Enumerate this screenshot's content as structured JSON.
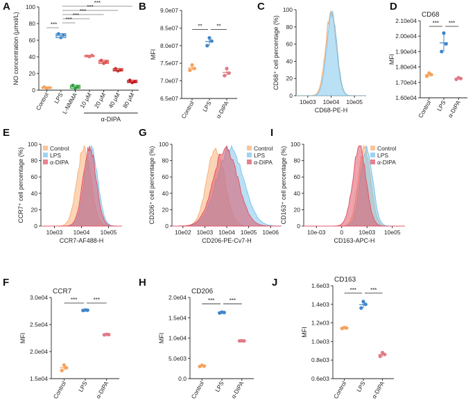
{
  "colors": {
    "control": "#f5a25d",
    "lps": "#3f86c8",
    "lnmma": "#2f9e3f",
    "dipa10": "#e57373",
    "dipa20": "#d9534f",
    "dipa40": "#c9302c",
    "dipa80": "#c0181b",
    "dipa": "#e07a86",
    "hist_control": "#f7b27a",
    "hist_lps": "#7fc6ec",
    "hist_dipa": "#e0576a"
  },
  "chart_data": [
    {
      "id": "A",
      "label": "A",
      "type": "box",
      "ylabel": "NO concentration (μmol/L)",
      "ylim": [
        0,
        100
      ],
      "yticks": [
        "0",
        "20",
        "40",
        "60",
        "80",
        "100"
      ],
      "categories": [
        "Control",
        "LPS",
        "L-NMMA",
        "10 μM",
        "20 μM",
        "40 μM",
        "80 μM"
      ],
      "group_label": "α-DIPA",
      "color_keys": [
        "control",
        "lps",
        "lnmma",
        "dipa10",
        "dipa20",
        "dipa40",
        "dipa80"
      ],
      "points": [
        [
          4,
          2,
          3
        ],
        [
          68,
          63,
          66
        ],
        [
          6,
          2,
          4
        ],
        [
          41,
          40,
          42
        ],
        [
          36,
          32,
          34
        ],
        [
          26,
          23,
          24
        ],
        [
          12,
          9,
          10
        ]
      ],
      "sig": [
        "***",
        "***",
        "***",
        "***",
        "***",
        "***"
      ]
    },
    {
      "id": "B",
      "label": "B",
      "type": "dot",
      "ylabel": "MFI",
      "title": "",
      "ylim": [
        65000000.0,
        90000000.0
      ],
      "yticks": [
        "6.5e07",
        "7.0e07",
        "7.5e07",
        "8.0e07",
        "8.5e07",
        "9.0e07"
      ],
      "categories": [
        "Control",
        "LPS",
        "α-DIPA"
      ],
      "color_keys": [
        "control",
        "lps",
        "dipa"
      ],
      "points": [
        [
          73000000.0,
          74500000.0,
          73500000.0
        ],
        [
          80000000.0,
          82200000.0,
          81300000.0
        ],
        [
          71500000.0,
          73500000.0,
          72200000.0
        ]
      ],
      "sig": [
        "**",
        "**"
      ]
    },
    {
      "id": "C",
      "label": "C",
      "type": "histogram",
      "ylabel": "CD68⁺ cell percentage (%)",
      "xlabel": "CD68-PE-H",
      "xticks": [
        "10e03",
        "10e04",
        "10e05"
      ],
      "yticks": [
        "0",
        "20",
        "40",
        "60",
        "80",
        "100"
      ],
      "legend": [],
      "series": [
        {
          "name": "Control",
          "color_key": "hist_control",
          "mu": 0.5,
          "sigma": 0.075,
          "side": "line"
        },
        {
          "name": "LPS",
          "color_key": "hist_lps",
          "mu": 0.51,
          "sigma": 0.073,
          "side": "fill"
        }
      ]
    },
    {
      "id": "D",
      "label": "D",
      "type": "dot",
      "ylabel": "MFI",
      "title": "CD68",
      "ylim": [
        16000.0,
        21000.0
      ],
      "yticks": [
        "1.60e04",
        "1.70e04",
        "1.80e04",
        "1.90e04",
        "2.00e04",
        "2.10e04"
      ],
      "categories": [
        "Control",
        "LPS",
        "α-DIPA"
      ],
      "color_keys": [
        "control",
        "lps",
        "dipa"
      ],
      "points": [
        [
          17400.0,
          17600.0,
          17500.0
        ],
        [
          19000.0,
          20200.0,
          19500.0
        ],
        [
          17200.0,
          17300.0,
          17250.0
        ]
      ],
      "sig": [
        "***",
        "***"
      ]
    },
    {
      "id": "E",
      "label": "E",
      "type": "histogram",
      "ylabel": "CCR7⁺ cell percentage (%)",
      "xlabel": "CCR7-AF488-H",
      "xticks": [
        "10e03",
        "10e04",
        "10e05"
      ],
      "yticks": [
        "0",
        "20",
        "40",
        "60",
        "80",
        "100"
      ],
      "legend": [
        "Control",
        "LPS",
        "α-DIPA"
      ],
      "series": [
        {
          "name": "Control",
          "color_key": "hist_control",
          "mu": 0.53,
          "sigma": 0.085,
          "side": "fill"
        },
        {
          "name": "LPS",
          "color_key": "hist_lps",
          "mu": 0.62,
          "sigma": 0.08,
          "side": "fill"
        },
        {
          "name": "α-DIPA",
          "color_key": "hist_dipa",
          "mu": 0.6,
          "sigma": 0.08,
          "side": "fill"
        }
      ]
    },
    {
      "id": "G",
      "label": "G",
      "type": "histogram",
      "ylabel": "CD206⁺ cell percentage (%)",
      "xlabel": "CD206-PE-Cv7-H",
      "xticks": [
        "10e02",
        "10e03",
        "10e04",
        "10e05",
        "10e06"
      ],
      "yticks": [
        "0",
        "20",
        "40",
        "60",
        "80",
        "100"
      ],
      "legend": [
        "Control",
        "LPS",
        "α-DIPA"
      ],
      "series": [
        {
          "name": "Control",
          "color_key": "hist_control",
          "mu": 0.4,
          "sigma": 0.08,
          "side": "fill"
        },
        {
          "name": "LPS",
          "color_key": "hist_lps",
          "mu": 0.53,
          "sigma": 0.12,
          "side": "fill"
        },
        {
          "name": "α-DIPA",
          "color_key": "hist_dipa",
          "mu": 0.49,
          "sigma": 0.11,
          "side": "fill"
        }
      ]
    },
    {
      "id": "I",
      "label": "I",
      "type": "histogram",
      "ylabel": "CD163⁺ cell percentage (%)",
      "xlabel": "CD163-APC-H",
      "xticks": [
        "10e-03",
        "0",
        "10e03",
        "10e05"
      ],
      "yticks": [
        "0",
        "20",
        "40",
        "60",
        "80",
        "100"
      ],
      "legend": [
        "Control",
        "LPS",
        "α-DIPA"
      ],
      "series": [
        {
          "name": "Control",
          "color_key": "hist_control",
          "mu": 0.6,
          "sigma": 0.06,
          "side": "fill"
        },
        {
          "name": "LPS",
          "color_key": "hist_lps",
          "mu": 0.62,
          "sigma": 0.06,
          "side": "fill"
        },
        {
          "name": "α-DIPA",
          "color_key": "hist_dipa",
          "mu": 0.55,
          "sigma": 0.065,
          "side": "fill"
        }
      ]
    },
    {
      "id": "F",
      "label": "F",
      "type": "dot",
      "ylabel": "MFI",
      "title": "CCR7",
      "ylim": [
        15000.0,
        30000.0
      ],
      "yticks": [
        "1.5e04",
        "2.0e04",
        "2.5e04",
        "3.0e04"
      ],
      "categories": [
        "Control",
        "LPS",
        "α-DIPA"
      ],
      "color_keys": [
        "control",
        "lps",
        "dipa"
      ],
      "points": [
        [
          16500.0,
          17500.0,
          17000.0
        ],
        [
          27600.0,
          27700.0,
          27650.0
        ],
        [
          23100.0,
          23200.0,
          23150.0
        ]
      ],
      "sig": [
        "***",
        "***"
      ]
    },
    {
      "id": "H",
      "label": "H",
      "type": "dot",
      "ylabel": "MFI",
      "title": "CD206",
      "ylim": [
        0,
        20000.0
      ],
      "yticks": [
        "0.0",
        "5.0e03",
        "1.0e04",
        "1.5e04",
        "2.0e04"
      ],
      "categories": [
        "Control",
        "LPS",
        "α-DIPA"
      ],
      "color_keys": [
        "control",
        "lps",
        "dipa"
      ],
      "points": [
        [
          3000.0,
          3300.0,
          3100.0
        ],
        [
          16200.0,
          16400.0,
          16300.0
        ],
        [
          9300.0,
          9350.0,
          9300.0
        ]
      ],
      "sig": [
        "***",
        "***"
      ]
    },
    {
      "id": "J",
      "label": "J",
      "type": "dot",
      "ylabel": "MFI",
      "title": "CD163",
      "ylim": [
        600.0,
        1600.0
      ],
      "yticks": [
        "0.6e03",
        "0.8e03",
        "1.0e03",
        "1.2e03",
        "1.4e03",
        "1.6e03"
      ],
      "categories": [
        "Control",
        "LPS",
        "α-DIPA"
      ],
      "color_keys": [
        "control",
        "lps",
        "dipa"
      ],
      "points": [
        [
          1140.0,
          1150.0,
          1145.0
        ],
        [
          1360.0,
          1430.0,
          1400.0
        ],
        [
          840.0,
          880.0,
          860.0
        ]
      ],
      "sig": [
        "***",
        "***"
      ]
    }
  ]
}
